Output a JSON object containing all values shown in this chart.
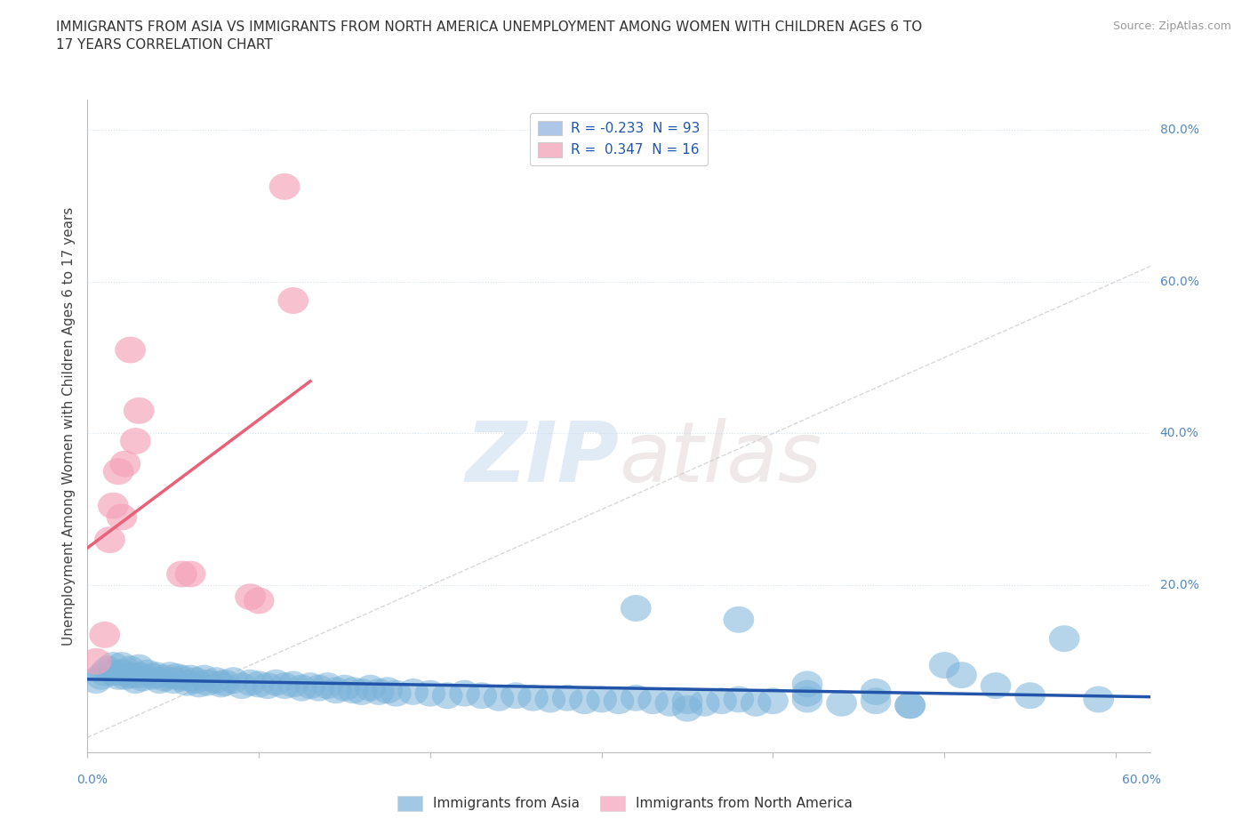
{
  "title": "IMMIGRANTS FROM ASIA VS IMMIGRANTS FROM NORTH AMERICA UNEMPLOYMENT AMONG WOMEN WITH CHILDREN AGES 6 TO\n17 YEARS CORRELATION CHART",
  "source": "Source: ZipAtlas.com",
  "ylabel": "Unemployment Among Women with Children Ages 6 to 17 years",
  "xlim": [
    0.0,
    0.62
  ],
  "ylim": [
    -0.02,
    0.84
  ],
  "legend_entry1_label": "R = -0.233  N = 93",
  "legend_entry2_label": "R =  0.347  N = 16",
  "legend_entry1_color": "#aec6e8",
  "legend_entry2_color": "#f4b8c8",
  "legend_label1": "Immigrants from Asia",
  "legend_label2": "Immigrants from North America",
  "blue_color": "#7ab3d9",
  "pink_color": "#f4a0b8",
  "trendline_blue_color": "#2255aa",
  "trendline_pink_color": "#e8607a",
  "diag_line_color": "#c8c8c8",
  "watermark_color": "#ccdaee",
  "grid_color": "#d8e4f0",
  "ytick_vals": [
    0.2,
    0.4,
    0.6,
    0.8
  ],
  "ytick_labels": [
    "20.0%",
    "40.0%",
    "60.0%",
    "80.0%"
  ],
  "asia_x": [
    0.005,
    0.008,
    0.01,
    0.012,
    0.015,
    0.015,
    0.018,
    0.02,
    0.02,
    0.022,
    0.025,
    0.025,
    0.028,
    0.03,
    0.03,
    0.032,
    0.035,
    0.038,
    0.04,
    0.042,
    0.045,
    0.048,
    0.05,
    0.052,
    0.055,
    0.058,
    0.06,
    0.063,
    0.065,
    0.068,
    0.07,
    0.075,
    0.078,
    0.08,
    0.085,
    0.09,
    0.095,
    0.1,
    0.105,
    0.11,
    0.115,
    0.12,
    0.125,
    0.13,
    0.135,
    0.14,
    0.145,
    0.15,
    0.155,
    0.16,
    0.165,
    0.17,
    0.175,
    0.18,
    0.19,
    0.2,
    0.21,
    0.22,
    0.23,
    0.24,
    0.25,
    0.26,
    0.27,
    0.28,
    0.29,
    0.3,
    0.31,
    0.32,
    0.33,
    0.34,
    0.35,
    0.36,
    0.37,
    0.38,
    0.39,
    0.4,
    0.42,
    0.44,
    0.46,
    0.48,
    0.32,
    0.38,
    0.42,
    0.46,
    0.5,
    0.51,
    0.53,
    0.55,
    0.57,
    0.59,
    0.35,
    0.42,
    0.48
  ],
  "asia_y": [
    0.075,
    0.08,
    0.085,
    0.09,
    0.085,
    0.095,
    0.08,
    0.085,
    0.095,
    0.08,
    0.082,
    0.09,
    0.075,
    0.082,
    0.092,
    0.078,
    0.085,
    0.08,
    0.082,
    0.075,
    0.078,
    0.082,
    0.075,
    0.08,
    0.078,
    0.072,
    0.078,
    0.075,
    0.07,
    0.078,
    0.072,
    0.075,
    0.07,
    0.072,
    0.075,
    0.068,
    0.072,
    0.07,
    0.068,
    0.072,
    0.068,
    0.07,
    0.065,
    0.068,
    0.065,
    0.068,
    0.062,
    0.065,
    0.062,
    0.06,
    0.065,
    0.06,
    0.062,
    0.058,
    0.06,
    0.058,
    0.055,
    0.058,
    0.055,
    0.052,
    0.055,
    0.052,
    0.05,
    0.052,
    0.048,
    0.05,
    0.048,
    0.052,
    0.048,
    0.045,
    0.048,
    0.045,
    0.048,
    0.05,
    0.045,
    0.048,
    0.05,
    0.045,
    0.048,
    0.042,
    0.17,
    0.155,
    0.07,
    0.06,
    0.095,
    0.082,
    0.068,
    0.055,
    0.13,
    0.05,
    0.038,
    0.058,
    0.042
  ],
  "na_x": [
    0.005,
    0.01,
    0.013,
    0.015,
    0.018,
    0.02,
    0.022,
    0.025,
    0.028,
    0.03,
    0.055,
    0.06,
    0.095,
    0.1,
    0.115,
    0.12
  ],
  "na_y": [
    0.1,
    0.135,
    0.26,
    0.305,
    0.35,
    0.29,
    0.36,
    0.51,
    0.39,
    0.43,
    0.215,
    0.215,
    0.185,
    0.18,
    0.725,
    0.575
  ],
  "pink_trendline_x0": 0.0,
  "pink_trendline_x1": 0.13,
  "blue_trendline_x0": 0.0,
  "blue_trendline_x1": 0.62
}
